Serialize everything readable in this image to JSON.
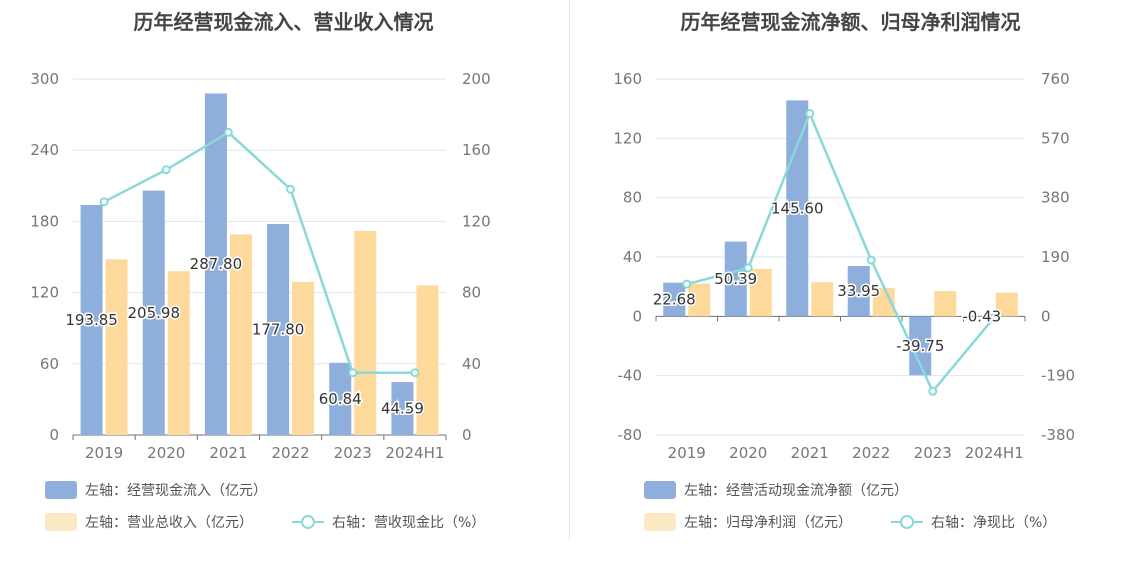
{
  "colors": {
    "bar_primary": "#8eaedb",
    "bar_secondary": "#fdd99b",
    "line": "#8ad8d8",
    "grid": "#e3e6ef",
    "axis_text": "#777777"
  },
  "left": {
    "title": "历年经营现金流入、营业收入情况",
    "legend": {
      "s1": "左轴：经营现金流入（亿元）",
      "s2": "左轴：营业总收入（亿元）",
      "s3": "右轴：营收现金比（%）"
    }
  },
  "right": {
    "title": "历年经营现金流净额、归母净利润情况",
    "legend": {
      "s1": "左轴：经营活动现金流净额（亿元）",
      "s2": "左轴：归母净利润（亿元）",
      "s3": "右轴：净现比（%）"
    }
  },
  "chart_data": [
    {
      "type": "bar",
      "title": "历年经营现金流入、营业收入情况",
      "categories": [
        "2019",
        "2020",
        "2021",
        "2022",
        "2023",
        "2024H1"
      ],
      "ylim": [
        0,
        300
      ],
      "yticks": [
        0,
        60,
        120,
        180,
        240,
        300
      ],
      "y2lim": [
        0,
        200
      ],
      "y2ticks": [
        0,
        40,
        80,
        120,
        160,
        200
      ],
      "grid": true,
      "legend_position": "bottom-left",
      "series": [
        {
          "name": "左轴：经营现金流入（亿元）",
          "type": "bar",
          "axis": "left",
          "values": [
            193.85,
            205.98,
            287.8,
            177.8,
            60.84,
            44.59
          ],
          "labels": [
            "193.85",
            "205.98",
            "287.80",
            "177.80",
            "60.84",
            "44.59"
          ]
        },
        {
          "name": "左轴：营业总收入（亿元）",
          "type": "bar",
          "axis": "left",
          "values": [
            148,
            138,
            169,
            129,
            172,
            126
          ]
        },
        {
          "name": "右轴：营收现金比（%）",
          "type": "line",
          "axis": "right",
          "values": [
            131,
            149,
            170,
            138,
            35,
            35
          ]
        }
      ]
    },
    {
      "type": "bar",
      "title": "历年经营现金流净额、归母净利润情况",
      "categories": [
        "2019",
        "2020",
        "2021",
        "2022",
        "2023",
        "2024H1"
      ],
      "ylim": [
        -80,
        160
      ],
      "yticks": [
        -80,
        -40,
        0,
        40,
        80,
        120,
        160
      ],
      "y2lim": [
        -380,
        760
      ],
      "y2ticks": [
        -380,
        -190,
        0,
        190,
        380,
        570,
        760
      ],
      "grid": true,
      "legend_position": "bottom-left",
      "series": [
        {
          "name": "左轴：经营活动现金流净额（亿元）",
          "type": "bar",
          "axis": "left",
          "values": [
            22.68,
            50.39,
            145.6,
            33.95,
            -39.75,
            -0.43
          ],
          "labels": [
            "22.68",
            "50.39",
            "145.60",
            "33.95",
            "-39.75",
            "-0.43"
          ]
        },
        {
          "name": "左轴：归母净利润（亿元）",
          "type": "bar",
          "axis": "left",
          "values": [
            22,
            32,
            23,
            19,
            17,
            16
          ]
        },
        {
          "name": "右轴：净现比（%）",
          "type": "line",
          "axis": "right",
          "values": [
            103,
            155,
            649,
            180,
            -240,
            -3
          ]
        }
      ]
    }
  ]
}
